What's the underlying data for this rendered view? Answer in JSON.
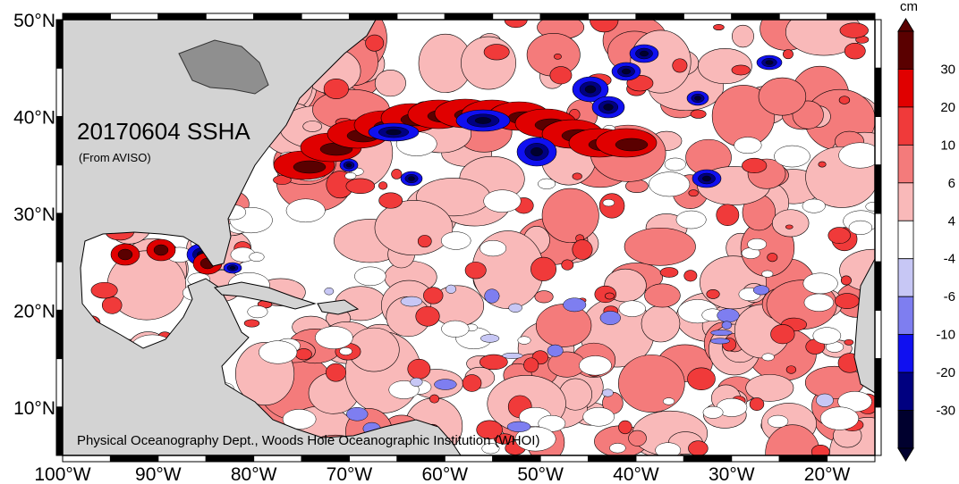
{
  "map": {
    "title": "20170604 SSHA",
    "source_note": "(From AVISO)",
    "credit": "Physical Oceanography Dept., Woods Hole Oceanographic Institution (WHOI)",
    "lat_labels": [
      "50°N",
      "40°N",
      "30°N",
      "20°N",
      "10°N"
    ],
    "lat_values": [
      50,
      40,
      30,
      20,
      10
    ],
    "lon_labels": [
      "100°W",
      "90°W",
      "80°W",
      "70°W",
      "60°W",
      "50°W",
      "40°W",
      "30°W",
      "20°W"
    ],
    "lon_values": [
      -100,
      -90,
      -80,
      -70,
      -60,
      -50,
      -40,
      -30,
      -20
    ],
    "lon_range": [
      -100,
      -15
    ],
    "lat_range": [
      5,
      50
    ],
    "land_color": "#d3d3d3",
    "ocean_base_color": "#ffffff"
  },
  "colorbar": {
    "unit": "cm",
    "tick_labels": [
      "30",
      "20",
      "10",
      "6",
      "4",
      "-4",
      "-6",
      "-10",
      "-20",
      "-30"
    ],
    "levels": [
      {
        "range": "> 30",
        "color": "#5a0000"
      },
      {
        "range": "20 to 30",
        "color": "#e00000"
      },
      {
        "range": "10 to 20",
        "color": "#f03a3a"
      },
      {
        "range": "6 to 10",
        "color": "#f47b7b"
      },
      {
        "range": "4 to 6",
        "color": "#f9b9b9"
      },
      {
        "range": "-4 to 4",
        "color": "#ffffff"
      },
      {
        "range": "-6 to -4",
        "color": "#c7c7f5"
      },
      {
        "range": "-10 to -6",
        "color": "#7e7ef0"
      },
      {
        "range": "-20 to -10",
        "color": "#1010f0"
      },
      {
        "range": "-30 to -20",
        "color": "#000080"
      },
      {
        "range": "< -30",
        "color": "#00002e"
      }
    ]
  }
}
